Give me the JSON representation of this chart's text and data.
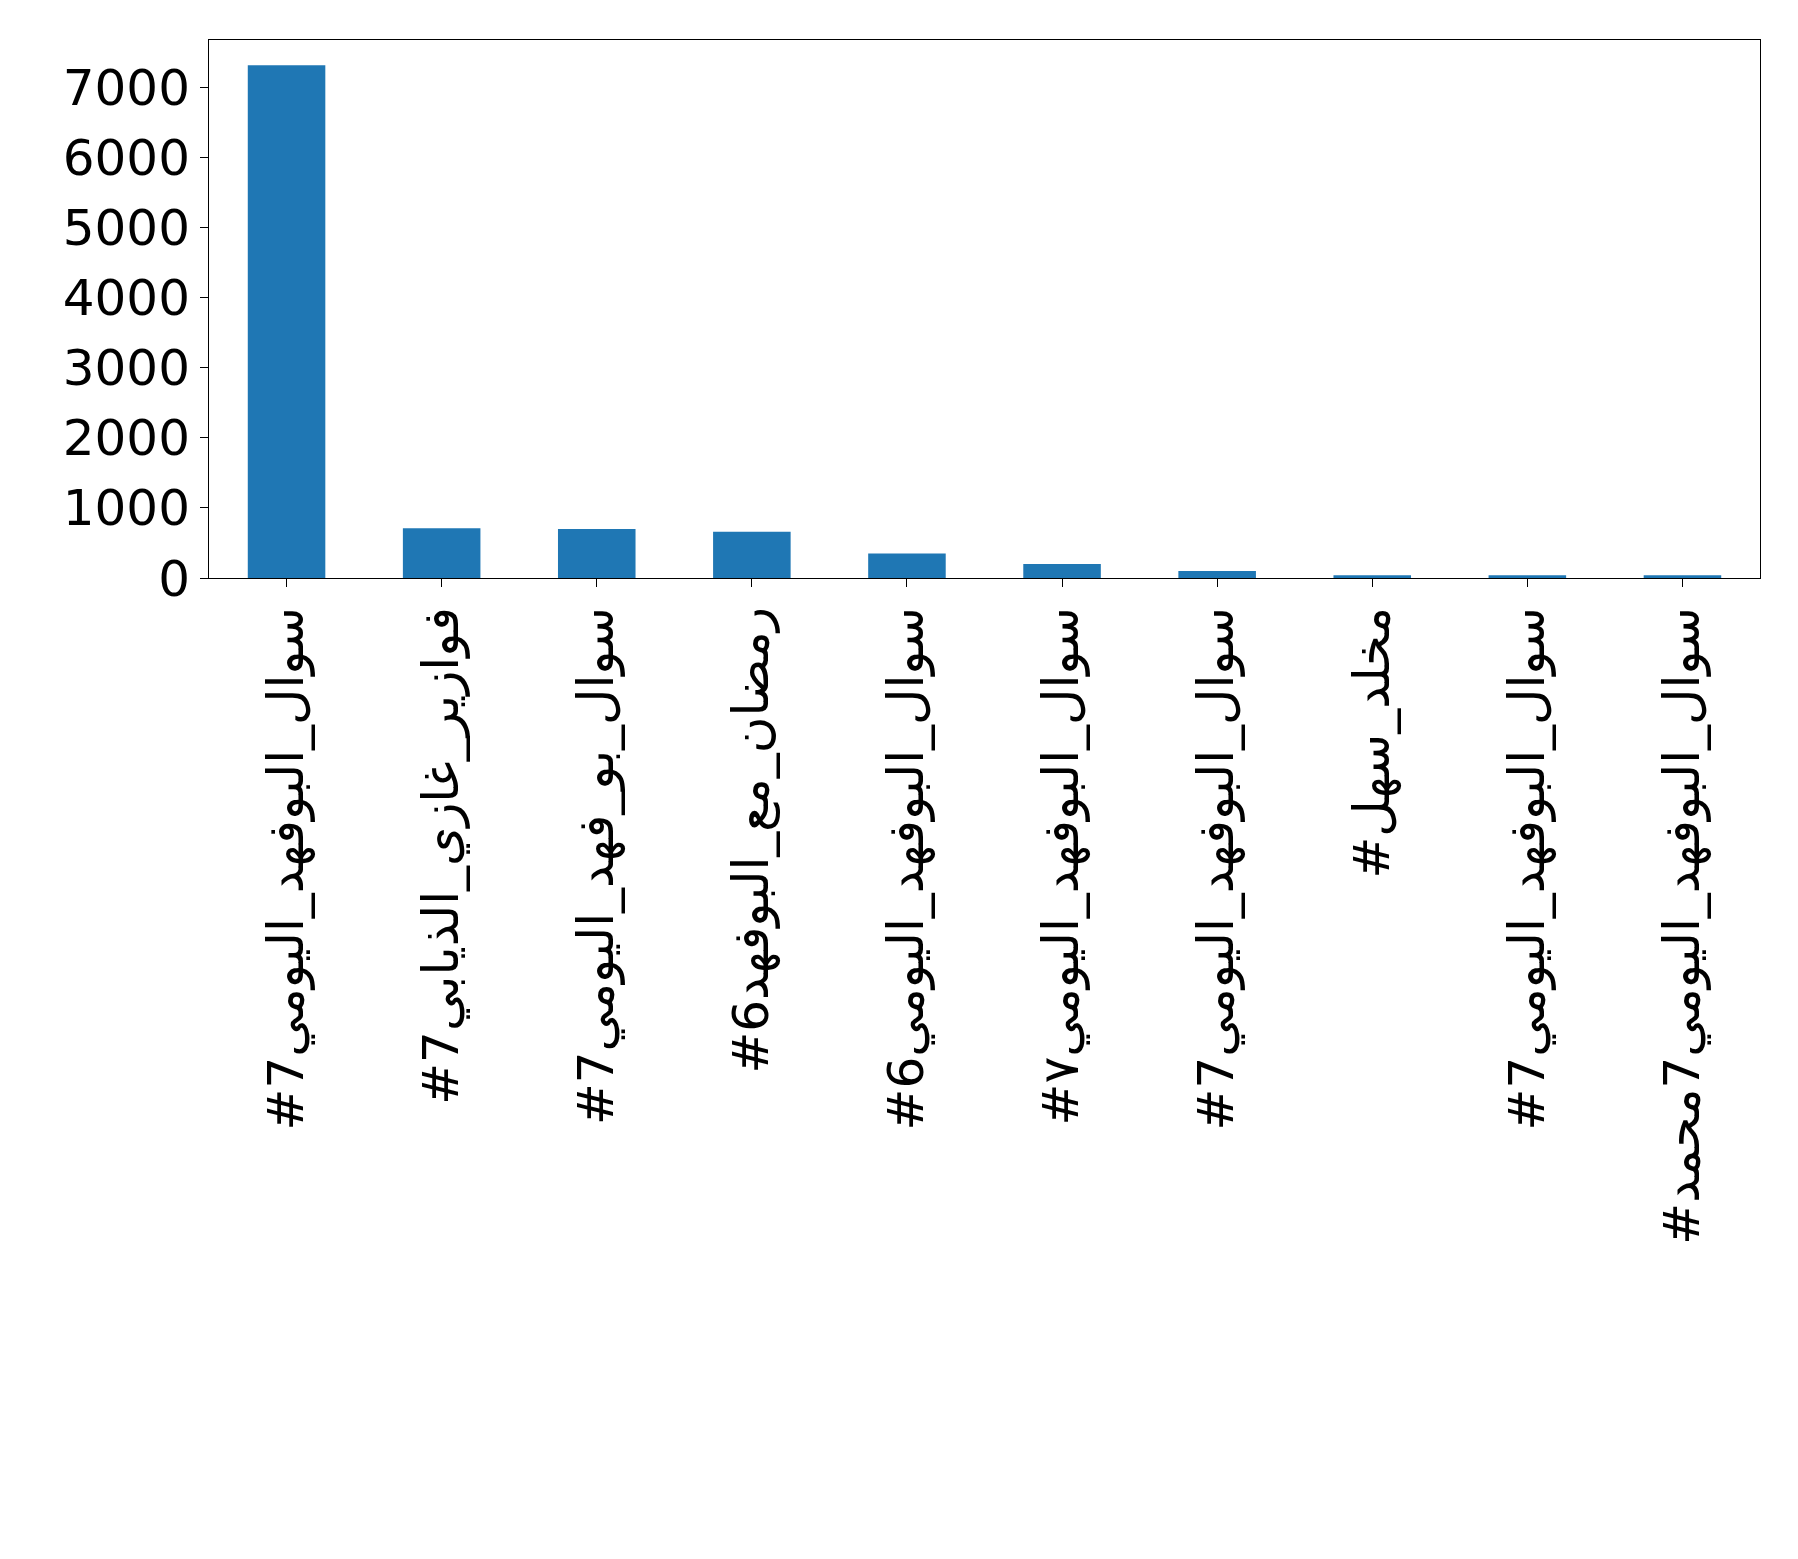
{
  "chart_data": {
    "type": "bar",
    "categories": [
      "#سوال_البوفهد_اليومي7",
      "#فوازير_غازي_الذيابي7",
      "#سوال_بو_فهد_اليومي7",
      "#رمضان_مع_البوفهد6",
      "#سوال_البوفهد_اليومي6",
      "#سوال_البوفهد_اليومي٧",
      "#7سوال_البوفهد_اليومي",
      "#مخلد_سهل",
      "#7سوال_البوفهد_اليومي",
      "#سوال_البوفهد_اليومي7محمد"
    ],
    "values": [
      7320,
      710,
      700,
      660,
      350,
      200,
      100,
      40,
      40,
      40
    ],
    "color": "#1f77b4",
    "ylim": [
      0,
      7680
    ],
    "yticks": [
      0,
      1000,
      2000,
      3000,
      4000,
      5000,
      6000,
      7000
    ]
  }
}
